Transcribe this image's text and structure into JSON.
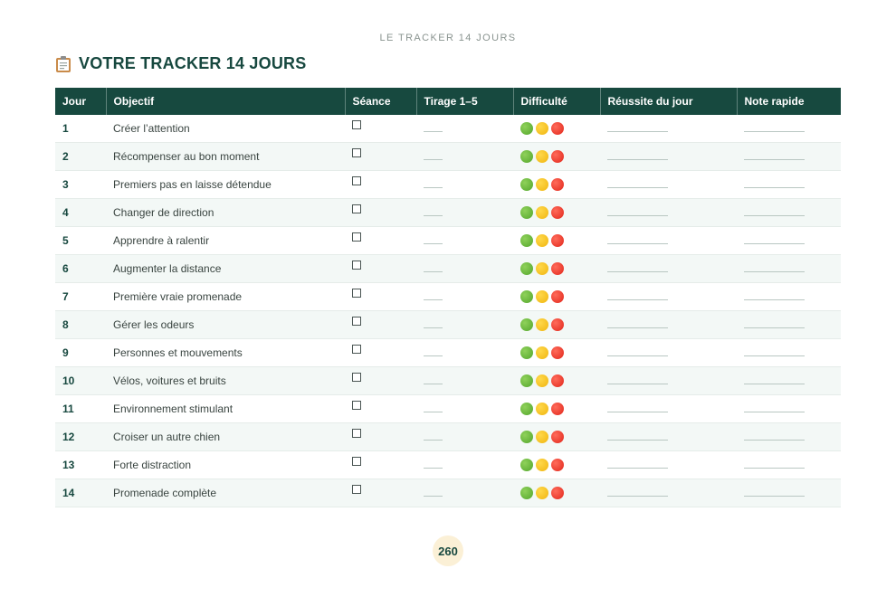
{
  "running_head": "LE TRACKER 14 JOURS",
  "title": "VOTRE TRACKER 14 JOURS",
  "title_icon": "clipboard-icon",
  "colors": {
    "header_bg": "#17493f",
    "title": "#17483f",
    "row_alt": "#f3f8f6",
    "dot_green": "#53a62c",
    "dot_yellow": "#f0b50f",
    "dot_red": "#e1271b",
    "page_badge": "#fbf0d6"
  },
  "table": {
    "headers": {
      "jour": "Jour",
      "objectif": "Objectif",
      "seance": "Séance",
      "tirage": "Tirage 1–5",
      "difficulte": "Difficulté",
      "reussite": "Réussite du jour",
      "note": "Note rapide"
    },
    "checkbox_glyph": "☐",
    "difficulty_icons": [
      "green-circle-icon",
      "yellow-circle-icon",
      "red-circle-icon"
    ],
    "rows": [
      {
        "jour": "1",
        "objectif": "Créer l’attention"
      },
      {
        "jour": "2",
        "objectif": "Récompenser au bon moment"
      },
      {
        "jour": "3",
        "objectif": "Premiers pas en laisse détendue"
      },
      {
        "jour": "4",
        "objectif": "Changer de direction"
      },
      {
        "jour": "5",
        "objectif": "Apprendre à ralentir"
      },
      {
        "jour": "6",
        "objectif": "Augmenter la distance"
      },
      {
        "jour": "7",
        "objectif": "Première vraie promenade"
      },
      {
        "jour": "8",
        "objectif": "Gérer les odeurs"
      },
      {
        "jour": "9",
        "objectif": "Personnes et mouvements"
      },
      {
        "jour": "10",
        "objectif": "Vélos, voitures et bruits"
      },
      {
        "jour": "11",
        "objectif": "Environnement stimulant"
      },
      {
        "jour": "12",
        "objectif": "Croiser un autre chien"
      },
      {
        "jour": "13",
        "objectif": "Forte distraction"
      },
      {
        "jour": "14",
        "objectif": "Promenade complète"
      }
    ]
  },
  "page_number": "260"
}
